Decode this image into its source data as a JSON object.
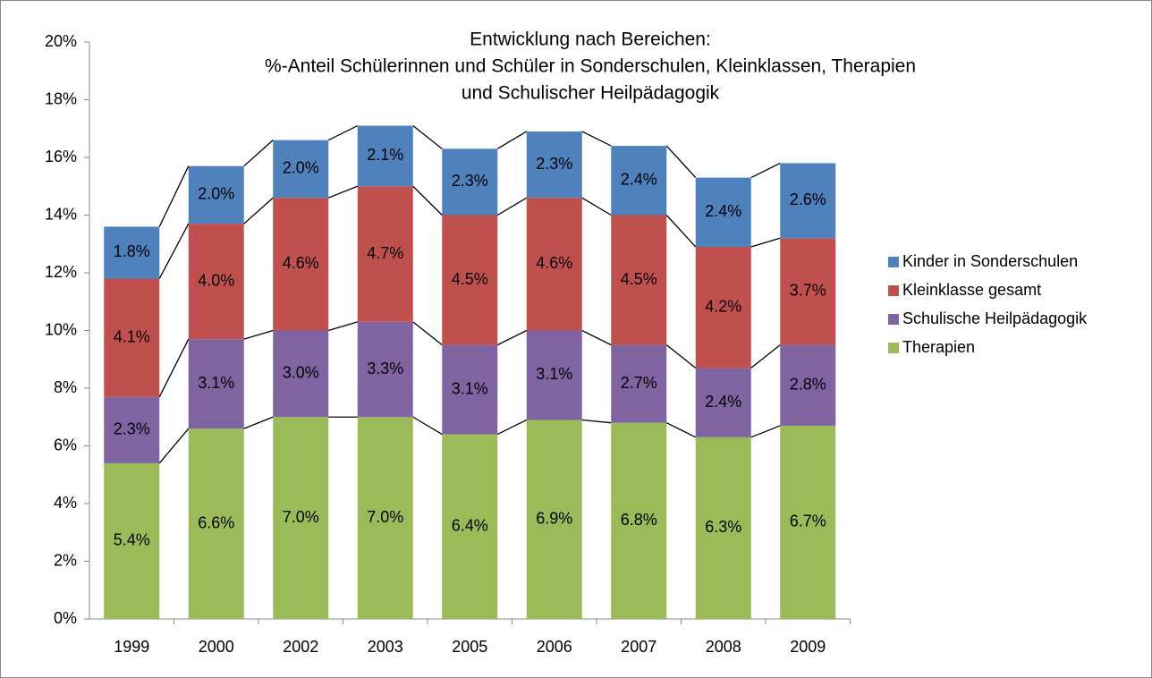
{
  "chart_data": {
    "type": "stacked_bar",
    "title": [
      "Entwicklung nach Bereichen:",
      "%-Anteil Schülerinnen und Schüler in Sonderschulen, Kleinklassen, Therapien",
      "und Schulischer Heilpädagogik"
    ],
    "categories": [
      "1999",
      "2000",
      "2002",
      "2003",
      "2005",
      "2006",
      "2007",
      "2008",
      "2009"
    ],
    "series": [
      {
        "name": "Therapien",
        "color": "#9bbb59",
        "values": [
          5.4,
          6.6,
          7.0,
          7.0,
          6.4,
          6.9,
          6.8,
          6.3,
          6.7
        ],
        "value_labels": [
          "5.4%",
          "6.6%",
          "7.0%",
          "7.0%",
          "6.4%",
          "6.9%",
          "6.8%",
          "6.3%",
          "6.7%"
        ]
      },
      {
        "name": "Schulische Heilpädagogik",
        "color": "#8064a2",
        "values": [
          2.3,
          3.1,
          3.0,
          3.3,
          3.1,
          3.1,
          2.7,
          2.4,
          2.8
        ],
        "value_labels": [
          "2.3%",
          "3.1%",
          "3.0%",
          "3.3%",
          "3.1%",
          "3.1%",
          "2.7%",
          "2.4%",
          "2.8%"
        ]
      },
      {
        "name": "Kleinklasse gesamt",
        "color": "#c0504d",
        "values": [
          4.1,
          4.0,
          4.6,
          4.7,
          4.5,
          4.6,
          4.5,
          4.2,
          3.7
        ],
        "value_labels": [
          "4.1%",
          "4.0%",
          "4.6%",
          "4.7%",
          "4.5%",
          "4.6%",
          "4.5%",
          "4.2%",
          "3.7%"
        ]
      },
      {
        "name": "Kinder in Sonderschulen",
        "color": "#4f81bd",
        "values": [
          1.8,
          2.0,
          2.0,
          2.1,
          2.3,
          2.3,
          2.4,
          2.4,
          2.6
        ],
        "value_labels": [
          "1.8%",
          "2.0%",
          "2.0%",
          "2.1%",
          "2.3%",
          "2.3%",
          "2.4%",
          "2.4%",
          "2.6%"
        ]
      }
    ],
    "ylim": [
      0,
      20
    ],
    "yticks": [
      {
        "value": 0,
        "label": "0%"
      },
      {
        "value": 2,
        "label": "2%"
      },
      {
        "value": 4,
        "label": "4%"
      },
      {
        "value": 6,
        "label": "6%"
      },
      {
        "value": 8,
        "label": "8%"
      },
      {
        "value": 10,
        "label": "10%"
      },
      {
        "value": 12,
        "label": "12%"
      },
      {
        "value": 14,
        "label": "14%"
      },
      {
        "value": 16,
        "label": "16%"
      },
      {
        "value": 18,
        "label": "18%"
      },
      {
        "value": 20,
        "label": "20%"
      }
    ],
    "legend": "right",
    "series_lines": true
  }
}
